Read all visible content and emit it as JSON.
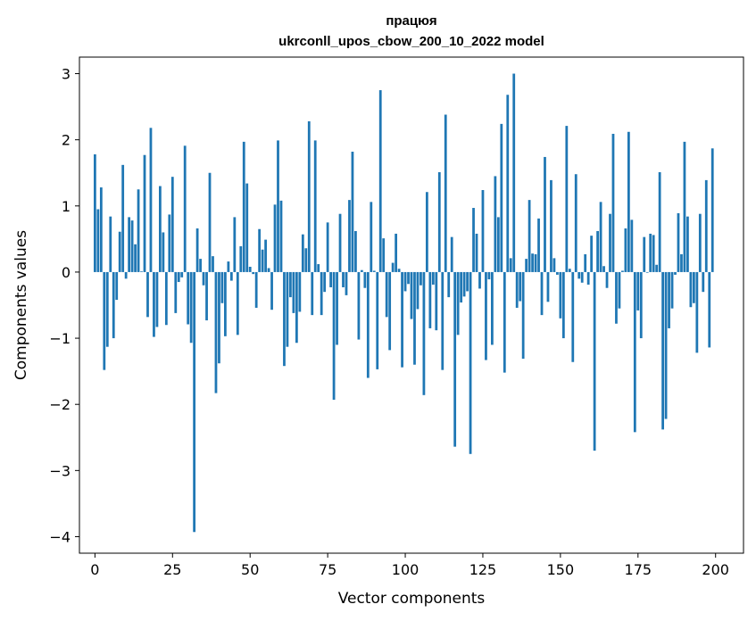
{
  "chart_data": {
    "type": "bar",
    "title_line1": "працюя",
    "title_line2": "ukrconll_upos_cbow_200_10_2022 model",
    "xlabel": "Vector components",
    "ylabel": "Components values",
    "xlim": [
      -5,
      209
    ],
    "ylim": [
      -4.25,
      3.25
    ],
    "xticks": [
      0,
      25,
      50,
      75,
      100,
      125,
      150,
      175,
      200
    ],
    "yticks": [
      -4,
      -3,
      -2,
      -1,
      0,
      1,
      2,
      3
    ],
    "xtick_labels": [
      "0",
      "25",
      "50",
      "75",
      "100",
      "125",
      "150",
      "175",
      "200"
    ],
    "ytick_labels": [
      "−4",
      "−3",
      "−2",
      "−1",
      "0",
      "1",
      "2",
      "3"
    ],
    "bar_color": "#1f77b4",
    "grid": false,
    "x": [
      0,
      1,
      2,
      3,
      4,
      5,
      6,
      7,
      8,
      9,
      10,
      11,
      12,
      13,
      14,
      15,
      16,
      17,
      18,
      19,
      20,
      21,
      22,
      23,
      24,
      25,
      26,
      27,
      28,
      29,
      30,
      31,
      32,
      33,
      34,
      35,
      36,
      37,
      38,
      39,
      40,
      41,
      42,
      43,
      44,
      45,
      46,
      47,
      48,
      49,
      50,
      51,
      52,
      53,
      54,
      55,
      56,
      57,
      58,
      59,
      60,
      61,
      62,
      63,
      64,
      65,
      66,
      67,
      68,
      69,
      70,
      71,
      72,
      73,
      74,
      75,
      76,
      77,
      78,
      79,
      80,
      81,
      82,
      83,
      84,
      85,
      86,
      87,
      88,
      89,
      90,
      91,
      92,
      93,
      94,
      95,
      96,
      97,
      98,
      99,
      100,
      101,
      102,
      103,
      104,
      105,
      106,
      107,
      108,
      109,
      110,
      111,
      112,
      113,
      114,
      115,
      116,
      117,
      118,
      119,
      120,
      121,
      122,
      123,
      124,
      125,
      126,
      127,
      128,
      129,
      130,
      131,
      132,
      133,
      134,
      135,
      136,
      137,
      138,
      139,
      140,
      141,
      142,
      143,
      144,
      145,
      146,
      147,
      148,
      149,
      150,
      151,
      152,
      153,
      154,
      155,
      156,
      157,
      158,
      159,
      160,
      161,
      162,
      163,
      164,
      165,
      166,
      167,
      168,
      169,
      170,
      171,
      172,
      173,
      174,
      175,
      176,
      177,
      178,
      179,
      180,
      181,
      182,
      183,
      184,
      185,
      186,
      187,
      188,
      189,
      190,
      191,
      192,
      193,
      194,
      195,
      196,
      197,
      198,
      199
    ],
    "values": [
      1.78,
      0.95,
      1.28,
      -1.48,
      -1.13,
      0.84,
      -1.0,
      -0.42,
      0.61,
      1.62,
      -0.1,
      0.83,
      0.78,
      0.42,
      1.25,
      0.01,
      1.77,
      -0.68,
      2.18,
      -0.98,
      -0.83,
      1.3,
      0.6,
      -0.8,
      0.87,
      1.44,
      -0.62,
      -0.15,
      -0.08,
      1.91,
      -0.79,
      -1.07,
      -3.93,
      0.66,
      0.2,
      -0.2,
      -0.73,
      1.5,
      0.24,
      -1.83,
      -1.38,
      -0.47,
      -0.97,
      0.16,
      -0.13,
      0.83,
      -0.95,
      0.39,
      1.97,
      1.34,
      0.08,
      -0.03,
      -0.54,
      0.65,
      0.34,
      0.49,
      0.06,
      -0.57,
      1.02,
      1.99,
      1.08,
      -1.42,
      -1.13,
      -0.38,
      -0.62,
      -1.07,
      -0.6,
      0.57,
      0.36,
      2.28,
      -0.65,
      1.99,
      0.12,
      -0.65,
      -0.3,
      0.75,
      -0.23,
      -1.93,
      -1.1,
      0.88,
      -0.23,
      -0.35,
      1.09,
      1.82,
      0.62,
      -1.02,
      0.03,
      -0.24,
      -1.6,
      1.06,
      0.02,
      -1.47,
      2.75,
      0.51,
      -0.68,
      -1.18,
      0.14,
      0.58,
      0.05,
      -1.44,
      -0.29,
      -0.18,
      -0.71,
      -1.4,
      -0.56,
      -0.2,
      -1.86,
      1.21,
      -0.85,
      -0.19,
      -0.88,
      1.51,
      -1.48,
      2.38,
      -0.38,
      0.53,
      -2.64,
      -0.95,
      -0.46,
      -0.37,
      -0.29,
      -2.75,
      0.97,
      0.58,
      -0.25,
      1.24,
      -1.33,
      -0.11,
      -1.1,
      1.45,
      0.83,
      2.24,
      -1.52,
      2.68,
      0.21,
      3.0,
      -0.54,
      -0.44,
      -1.31,
      0.2,
      1.09,
      0.28,
      0.27,
      0.81,
      -0.65,
      1.74,
      -0.45,
      1.39,
      0.21,
      -0.04,
      -0.7,
      -1.0,
      2.21,
      0.05,
      -1.36,
      1.48,
      -0.1,
      -0.16,
      0.27,
      -0.19,
      0.55,
      -2.7,
      0.62,
      1.06,
      0.09,
      -0.24,
      0.88,
      2.09,
      -0.78,
      -0.55,
      0.02,
      0.66,
      2.12,
      0.79,
      -2.42,
      -0.58,
      -1.0,
      0.53,
      -0.01,
      0.58,
      0.56,
      0.11,
      1.51,
      -2.38,
      -2.22,
      -0.85,
      -0.55,
      -0.04,
      0.89,
      0.27,
      1.97,
      0.84,
      -0.53,
      -0.47,
      -1.22,
      0.88,
      -0.3,
      1.39,
      -1.14,
      1.87
    ]
  }
}
